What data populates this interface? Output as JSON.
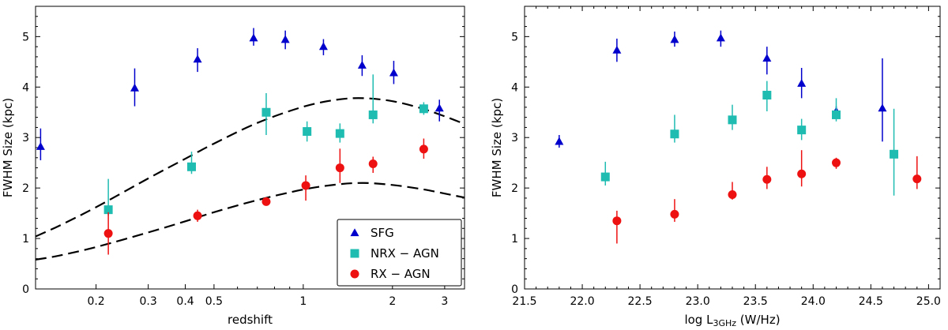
{
  "chart_data": [
    {
      "type": "scatter",
      "xlabel": "redshift",
      "ylabel": "FWHM Size (kpc)",
      "xscale": "log",
      "xlim": [
        0.125,
        3.5
      ],
      "ylim": [
        0,
        5.6
      ],
      "xticks": [
        {
          "value": 0.2,
          "label": "0.2"
        },
        {
          "value": 0.3,
          "label": "0.3"
        },
        {
          "value": 0.4,
          "label": "0.4"
        },
        {
          "value": 0.5,
          "label": "0.5"
        },
        {
          "value": 1,
          "label": "1"
        },
        {
          "value": 2,
          "label": "2"
        },
        {
          "value": 3,
          "label": "3"
        }
      ],
      "yticks": [
        0,
        1,
        2,
        3,
        4,
        5
      ],
      "legend": {
        "position": "bottom-right"
      },
      "series": [
        {
          "name": "SFG",
          "color": "#0000cc",
          "marker": "triangle",
          "points": [
            {
              "x": 0.13,
              "y": 2.82,
              "lo": 2.55,
              "hi": 3.18
            },
            {
              "x": 0.27,
              "y": 3.98,
              "lo": 3.62,
              "hi": 4.37
            },
            {
              "x": 0.44,
              "y": 4.55,
              "lo": 4.3,
              "hi": 4.77
            },
            {
              "x": 0.68,
              "y": 4.97,
              "lo": 4.82,
              "hi": 5.17
            },
            {
              "x": 0.87,
              "y": 4.94,
              "lo": 4.75,
              "hi": 5.12
            },
            {
              "x": 1.17,
              "y": 4.8,
              "lo": 4.63,
              "hi": 4.95
            },
            {
              "x": 1.58,
              "y": 4.43,
              "lo": 4.22,
              "hi": 4.63
            },
            {
              "x": 2.02,
              "y": 4.28,
              "lo": 4.06,
              "hi": 4.52
            },
            {
              "x": 2.88,
              "y": 3.58,
              "lo": 3.32,
              "hi": 3.75
            }
          ]
        },
        {
          "name": "NRX − AGN",
          "color": "#1fbcb2",
          "marker": "square",
          "points": [
            {
              "x": 0.22,
              "y": 1.57,
              "lo": 1.45,
              "hi": 2.18
            },
            {
              "x": 0.42,
              "y": 2.42,
              "lo": 2.28,
              "hi": 2.72
            },
            {
              "x": 0.75,
              "y": 3.5,
              "lo": 3.05,
              "hi": 3.88
            },
            {
              "x": 1.03,
              "y": 3.12,
              "lo": 2.92,
              "hi": 3.32
            },
            {
              "x": 1.33,
              "y": 3.08,
              "lo": 2.9,
              "hi": 3.28
            },
            {
              "x": 1.72,
              "y": 3.45,
              "lo": 3.28,
              "hi": 4.25
            },
            {
              "x": 2.55,
              "y": 3.57,
              "lo": 3.45,
              "hi": 3.7
            }
          ]
        },
        {
          "name": "RX − AGN",
          "color": "#ee1111",
          "marker": "circle",
          "points": [
            {
              "x": 0.22,
              "y": 1.1,
              "lo": 0.68,
              "hi": 1.52
            },
            {
              "x": 0.44,
              "y": 1.45,
              "lo": 1.33,
              "hi": 1.57
            },
            {
              "x": 0.75,
              "y": 1.73,
              "lo": 1.65,
              "hi": 1.8
            },
            {
              "x": 1.02,
              "y": 2.05,
              "lo": 1.75,
              "hi": 2.25
            },
            {
              "x": 1.33,
              "y": 2.4,
              "lo": 2.1,
              "hi": 2.78
            },
            {
              "x": 1.72,
              "y": 2.48,
              "lo": 2.3,
              "hi": 2.62
            },
            {
              "x": 2.55,
              "y": 2.77,
              "lo": 2.58,
              "hi": 2.98
            }
          ]
        }
      ],
      "curves": [
        {
          "name": "upper-model",
          "style": "dashed",
          "x": [
            0.125,
            0.15,
            0.2,
            0.3,
            0.4,
            0.5,
            0.7,
            1.0,
            1.3,
            1.6,
            2.0,
            2.5,
            3.0,
            3.5
          ],
          "y": [
            1.04,
            1.25,
            1.62,
            2.19,
            2.58,
            2.88,
            3.29,
            3.61,
            3.75,
            3.78,
            3.72,
            3.58,
            3.42,
            3.27
          ]
        },
        {
          "name": "lower-model",
          "style": "dashed",
          "x": [
            0.125,
            0.15,
            0.2,
            0.3,
            0.4,
            0.5,
            0.7,
            1.0,
            1.3,
            1.6,
            2.0,
            2.5,
            3.0,
            3.5
          ],
          "y": [
            0.58,
            0.66,
            0.83,
            1.12,
            1.34,
            1.52,
            1.76,
            1.97,
            2.07,
            2.1,
            2.06,
            1.98,
            1.89,
            1.81
          ]
        }
      ]
    },
    {
      "type": "scatter",
      "xlabel": "log L",
      "xlabel_sub": "3GHz",
      "xlabel_tail": " (W/Hz)",
      "ylabel": "FWHM Size (kpc)",
      "xscale": "linear",
      "xlim": [
        21.5,
        25.1
      ],
      "ylim": [
        0,
        5.6
      ],
      "xticks": [
        {
          "value": 21.5,
          "label": "21.5"
        },
        {
          "value": 22.0,
          "label": "22.0"
        },
        {
          "value": 22.5,
          "label": "22.5"
        },
        {
          "value": 23.0,
          "label": "23.0"
        },
        {
          "value": 23.5,
          "label": "23.5"
        },
        {
          "value": 24.0,
          "label": "24.0"
        },
        {
          "value": 24.5,
          "label": "24.5"
        },
        {
          "value": 25.0,
          "label": "25.0"
        }
      ],
      "yticks": [
        0,
        1,
        2,
        3,
        4,
        5
      ],
      "series": [
        {
          "name": "SFG",
          "color": "#0000cc",
          "marker": "triangle",
          "points": [
            {
              "x": 21.8,
              "y": 2.92,
              "lo": 2.8,
              "hi": 3.05
            },
            {
              "x": 22.3,
              "y": 4.73,
              "lo": 4.5,
              "hi": 4.96
            },
            {
              "x": 22.8,
              "y": 4.94,
              "lo": 4.8,
              "hi": 5.1
            },
            {
              "x": 23.2,
              "y": 4.97,
              "lo": 4.8,
              "hi": 5.12
            },
            {
              "x": 23.6,
              "y": 4.57,
              "lo": 4.25,
              "hi": 4.8
            },
            {
              "x": 23.9,
              "y": 4.07,
              "lo": 3.78,
              "hi": 4.38
            },
            {
              "x": 24.2,
              "y": 3.52,
              "lo": 3.42,
              "hi": 3.62
            },
            {
              "x": 24.6,
              "y": 3.58,
              "lo": 2.92,
              "hi": 4.57
            }
          ]
        },
        {
          "name": "NRX − AGN",
          "color": "#1fbcb2",
          "marker": "square",
          "points": [
            {
              "x": 22.2,
              "y": 2.22,
              "lo": 2.05,
              "hi": 2.52
            },
            {
              "x": 22.8,
              "y": 3.07,
              "lo": 2.9,
              "hi": 3.45
            },
            {
              "x": 23.3,
              "y": 3.35,
              "lo": 3.15,
              "hi": 3.65
            },
            {
              "x": 23.6,
              "y": 3.84,
              "lo": 3.52,
              "hi": 4.12
            },
            {
              "x": 23.9,
              "y": 3.15,
              "lo": 2.95,
              "hi": 3.37
            },
            {
              "x": 24.2,
              "y": 3.45,
              "lo": 3.32,
              "hi": 3.78
            },
            {
              "x": 24.7,
              "y": 2.67,
              "lo": 1.85,
              "hi": 3.57
            }
          ]
        },
        {
          "name": "RX − AGN",
          "color": "#ee1111",
          "marker": "circle",
          "points": [
            {
              "x": 22.3,
              "y": 1.35,
              "lo": 0.9,
              "hi": 1.55
            },
            {
              "x": 22.8,
              "y": 1.48,
              "lo": 1.33,
              "hi": 1.78
            },
            {
              "x": 23.3,
              "y": 1.87,
              "lo": 1.77,
              "hi": 2.12
            },
            {
              "x": 23.6,
              "y": 2.17,
              "lo": 1.98,
              "hi": 2.42
            },
            {
              "x": 23.9,
              "y": 2.28,
              "lo": 2.03,
              "hi": 2.75
            },
            {
              "x": 24.2,
              "y": 2.5,
              "lo": 2.38,
              "hi": 2.6
            },
            {
              "x": 24.9,
              "y": 2.18,
              "lo": 1.98,
              "hi": 2.63
            }
          ]
        }
      ]
    }
  ]
}
